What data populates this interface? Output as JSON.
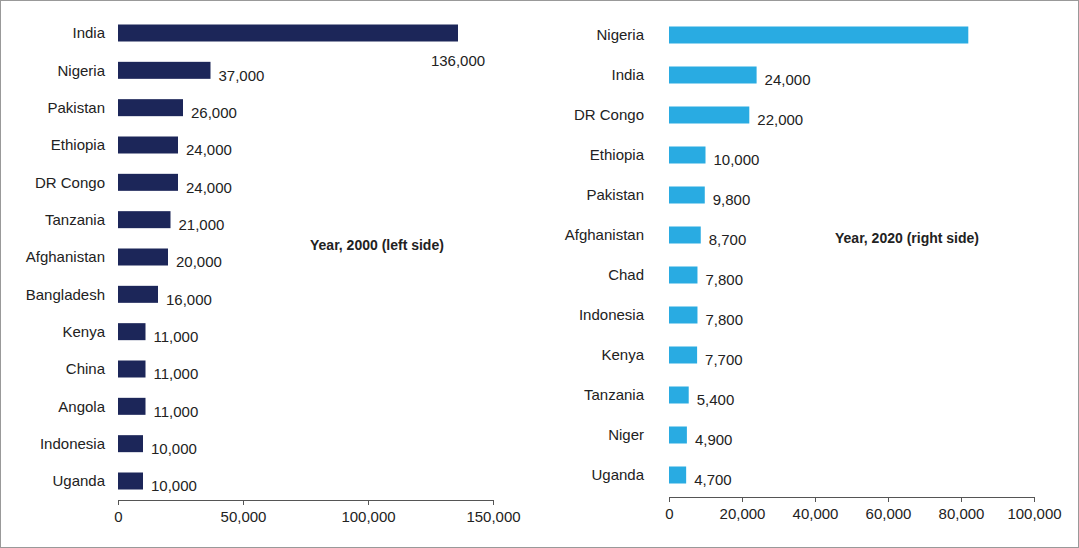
{
  "chart_data": [
    {
      "type": "bar",
      "orientation": "horizontal",
      "annotation": "Year, 2000 (left side)",
      "categories": [
        "India",
        "Nigeria",
        "Pakistan",
        "Ethiopia",
        "DR Congo",
        "Tanzania",
        "Afghanistan",
        "Bangladesh",
        "Kenya",
        "China",
        "Angola",
        "Indonesia",
        "Uganda"
      ],
      "values": [
        136000,
        37000,
        26000,
        24000,
        24000,
        21000,
        20000,
        16000,
        11000,
        11000,
        11000,
        10000,
        10000
      ],
      "value_labels": [
        "136,000",
        "37,000",
        "26,000",
        "24,000",
        "24,000",
        "21,000",
        "20,000",
        "16,000",
        "11,000",
        "11,000",
        "11,000",
        "10,000",
        "10,000"
      ],
      "data_labels": true,
      "color": "#1c2659",
      "grid": false,
      "xlim": [
        0,
        150000
      ],
      "xticks": [
        0,
        {
          "value": 50000,
          "label": "50,000"
        },
        {
          "value": 100000,
          "label": "100,000"
        },
        {
          "value": 150000,
          "label": "150,000"
        }
      ]
    },
    {
      "type": "bar",
      "orientation": "horizontal",
      "annotation": "Year, 2020 (right side)",
      "categories": [
        "Nigeria",
        "India",
        "DR Congo",
        "Ethiopia",
        "Pakistan",
        "Afghanistan",
        "Chad",
        "Indonesia",
        "Kenya",
        "Tanzania",
        "Niger",
        "Uganda"
      ],
      "values": [
        82000,
        24000,
        22000,
        10000,
        9800,
        8700,
        7800,
        7800,
        7700,
        5400,
        4900,
        4700
      ],
      "value_labels": [
        null,
        "24,000",
        "22,000",
        "10,000",
        "9,800",
        "8,700",
        "7,800",
        "7,800",
        "7,700",
        "5,400",
        "4,900",
        "4,700"
      ],
      "data_labels": true,
      "color": "#29abe2",
      "grid": false,
      "xlim": [
        0,
        100000
      ],
      "xticks": [
        0,
        {
          "value": 20000,
          "label": "20,000"
        },
        {
          "value": 40000,
          "label": "40,000"
        },
        {
          "value": 60000,
          "label": "60,000"
        },
        {
          "value": 80000,
          "label": "80,000"
        },
        {
          "value": 100000,
          "label": "100,000"
        }
      ]
    }
  ]
}
